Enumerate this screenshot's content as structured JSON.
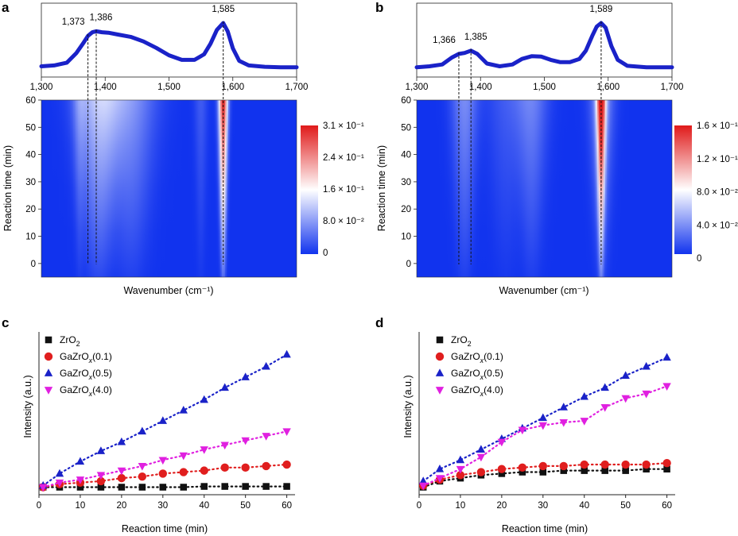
{
  "panels": {
    "a": "a",
    "b": "b",
    "c": "c",
    "d": "d"
  },
  "chart_data": [
    {
      "id": "a",
      "type": "heatmap",
      "title": "",
      "xlabel": "Wavenumber (cm⁻¹)",
      "ylabel": "Reaction time (min)",
      "xlim": [
        1300,
        1700
      ],
      "ylim": [
        -5,
        60
      ],
      "x_ticks": [
        "1,300",
        "1,400",
        "1,500",
        "1,600",
        "1,700"
      ],
      "x_tick_values": [
        1300,
        1400,
        1500,
        1600,
        1700
      ],
      "y_ticks": [
        "0",
        "10",
        "20",
        "30",
        "40",
        "50",
        "60"
      ],
      "y_tick_values": [
        0,
        10,
        20,
        30,
        40,
        50,
        60
      ],
      "colorbar": {
        "labels": [
          "3.1 × 10⁻¹",
          "2.4 × 10⁻¹",
          "1.6 × 10⁻¹",
          "8.0 × 10⁻²",
          "0"
        ],
        "max": 0.31,
        "colors": [
          "#e01a1a",
          "#ffffff",
          "#1133ee"
        ]
      },
      "peaks": [
        {
          "label": "1,373",
          "x": 1373
        },
        {
          "label": "1,386",
          "x": 1386
        },
        {
          "label": "1,585",
          "x": 1585
        }
      ],
      "spectrum": {
        "x": [
          1300,
          1320,
          1340,
          1355,
          1365,
          1373,
          1380,
          1386,
          1395,
          1405,
          1420,
          1440,
          1460,
          1480,
          1500,
          1520,
          1540,
          1555,
          1565,
          1575,
          1585,
          1592,
          1600,
          1610,
          1625,
          1650,
          1675,
          1700
        ],
        "y": [
          0.06,
          0.08,
          0.14,
          0.35,
          0.55,
          0.72,
          0.8,
          0.82,
          0.8,
          0.79,
          0.75,
          0.7,
          0.6,
          0.46,
          0.3,
          0.2,
          0.2,
          0.32,
          0.55,
          0.85,
          1.0,
          0.82,
          0.45,
          0.18,
          0.08,
          0.05,
          0.04,
          0.04
        ]
      },
      "heatmap_bands": [
        {
          "center": 1585,
          "width": 7,
          "amplitude": 0.31
        },
        {
          "center": 1390,
          "width": 35,
          "amplitude": 0.11
        },
        {
          "center": 1440,
          "width": 40,
          "amplitude": 0.07
        },
        {
          "center": 1360,
          "width": 10,
          "amplitude": 0.04
        },
        {
          "center": 1550,
          "width": 10,
          "amplitude": 0.03
        }
      ]
    },
    {
      "id": "b",
      "type": "heatmap",
      "title": "",
      "xlabel": "Wavenumber (cm⁻¹)",
      "ylabel": "Reaction time (min)",
      "xlim": [
        1300,
        1700
      ],
      "ylim": [
        -5,
        60
      ],
      "x_ticks": [
        "1,300",
        "1,400",
        "1,500",
        "1,600",
        "1,700"
      ],
      "x_tick_values": [
        1300,
        1400,
        1500,
        1600,
        1700
      ],
      "y_ticks": [
        "0",
        "10",
        "20",
        "30",
        "40",
        "50",
        "60"
      ],
      "y_tick_values": [
        0,
        10,
        20,
        30,
        40,
        50,
        60
      ],
      "colorbar": {
        "labels": [
          "1.6 × 10⁻¹",
          "1.2 × 10⁻¹",
          "8.0 × 10⁻²",
          "4.0 × 10⁻²",
          "0"
        ],
        "max": 0.16,
        "colors": [
          "#e01a1a",
          "#ffffff",
          "#1133ee"
        ]
      },
      "peaks": [
        {
          "label": "1,366",
          "x": 1366
        },
        {
          "label": "1,385",
          "x": 1385
        },
        {
          "label": "1,589",
          "x": 1589
        }
      ],
      "spectrum": {
        "x": [
          1300,
          1320,
          1340,
          1355,
          1366,
          1375,
          1385,
          1395,
          1410,
          1430,
          1450,
          1465,
          1480,
          1495,
          1510,
          1525,
          1540,
          1555,
          1565,
          1575,
          1582,
          1589,
          1596,
          1605,
          1615,
          1630,
          1660,
          1700
        ],
        "y": [
          0.04,
          0.06,
          0.1,
          0.25,
          0.33,
          0.35,
          0.4,
          0.33,
          0.12,
          0.06,
          0.1,
          0.22,
          0.28,
          0.27,
          0.2,
          0.15,
          0.15,
          0.22,
          0.4,
          0.72,
          0.92,
          1.0,
          0.9,
          0.5,
          0.2,
          0.07,
          0.04,
          0.04
        ]
      },
      "heatmap_bands": [
        {
          "center": 1589,
          "width": 7,
          "amplitude": 0.16
        },
        {
          "center": 1590,
          "width": 18,
          "amplitude": 0.04
        },
        {
          "center": 1375,
          "width": 20,
          "amplitude": 0.035
        },
        {
          "center": 1480,
          "width": 25,
          "amplitude": 0.03
        },
        {
          "center": 1440,
          "width": 30,
          "amplitude": 0.015
        }
      ]
    },
    {
      "id": "c",
      "type": "scatter",
      "title": "",
      "xlabel": "Reaction time (min)",
      "ylabel": "Intensity (a.u.)",
      "xlim": [
        0,
        62
      ],
      "ylim": [
        -0.05,
        1.03
      ],
      "x_ticks": [
        "0",
        "10",
        "20",
        "30",
        "40",
        "50",
        "60"
      ],
      "x_tick_values": [
        0,
        10,
        20,
        30,
        40,
        50,
        60
      ],
      "x": [
        1,
        5,
        10,
        15,
        20,
        25,
        30,
        35,
        40,
        45,
        50,
        55,
        60
      ],
      "series": [
        {
          "name": "ZrO",
          "sub": "2",
          "suffix": "",
          "marker": "square",
          "color": "#111111",
          "values": [
            0.0,
            0.0,
            0.0,
            0.0,
            0.0,
            0.0,
            0.0,
            0.0,
            0.005,
            0.005,
            0.005,
            0.005,
            0.005
          ]
        },
        {
          "name": "GaZrO",
          "sub": "x",
          "suffix": "(0.1)",
          "marker": "circle",
          "color": "#e01e1e",
          "values": [
            0.0,
            0.02,
            0.03,
            0.04,
            0.06,
            0.07,
            0.09,
            0.1,
            0.11,
            0.13,
            0.13,
            0.14,
            0.15
          ]
        },
        {
          "name": "GaZrO",
          "sub": "x",
          "suffix": "(0.5)",
          "marker": "triangle-up",
          "color": "#1a22c8",
          "values": [
            0.01,
            0.09,
            0.17,
            0.24,
            0.3,
            0.37,
            0.44,
            0.51,
            0.58,
            0.66,
            0.73,
            0.8,
            0.88
          ]
        },
        {
          "name": "GaZrO",
          "sub": "x",
          "suffix": "(4.0)",
          "marker": "triangle-down",
          "color": "#e020e0",
          "values": [
            0.0,
            0.03,
            0.05,
            0.08,
            0.11,
            0.14,
            0.18,
            0.21,
            0.25,
            0.28,
            0.31,
            0.34,
            0.37
          ]
        }
      ]
    },
    {
      "id": "d",
      "type": "scatter",
      "title": "",
      "xlabel": "Reaction time (min)",
      "ylabel": "Intensity (a.u.)",
      "xlim": [
        0,
        62
      ],
      "ylim": [
        -0.05,
        1.03
      ],
      "x_ticks": [
        "0",
        "10",
        "20",
        "30",
        "40",
        "50",
        "60"
      ],
      "x_tick_values": [
        0,
        10,
        20,
        30,
        40,
        50,
        60
      ],
      "x": [
        1,
        5,
        10,
        15,
        20,
        25,
        30,
        35,
        40,
        45,
        50,
        55,
        60
      ],
      "series": [
        {
          "name": "ZrO",
          "sub": "2",
          "suffix": "",
          "marker": "square",
          "color": "#111111",
          "values": [
            0.0,
            0.04,
            0.06,
            0.08,
            0.09,
            0.1,
            0.1,
            0.11,
            0.11,
            0.11,
            0.11,
            0.12,
            0.12
          ]
        },
        {
          "name": "GaZrO",
          "sub": "x",
          "suffix": "(0.1)",
          "marker": "circle",
          "color": "#e01e1e",
          "values": [
            0.01,
            0.05,
            0.08,
            0.1,
            0.12,
            0.13,
            0.14,
            0.14,
            0.15,
            0.15,
            0.15,
            0.15,
            0.16
          ]
        },
        {
          "name": "GaZrO",
          "sub": "x",
          "suffix": "(0.5)",
          "marker": "triangle-up",
          "color": "#1a22c8",
          "values": [
            0.04,
            0.12,
            0.18,
            0.25,
            0.32,
            0.39,
            0.46,
            0.53,
            0.6,
            0.66,
            0.74,
            0.8,
            0.86
          ]
        },
        {
          "name": "GaZrO",
          "sub": "x",
          "suffix": "(4.0)",
          "marker": "triangle-down",
          "color": "#e020e0",
          "values": [
            0.01,
            0.06,
            0.12,
            0.2,
            0.3,
            0.38,
            0.41,
            0.43,
            0.44,
            0.53,
            0.59,
            0.62,
            0.67
          ]
        }
      ]
    }
  ]
}
